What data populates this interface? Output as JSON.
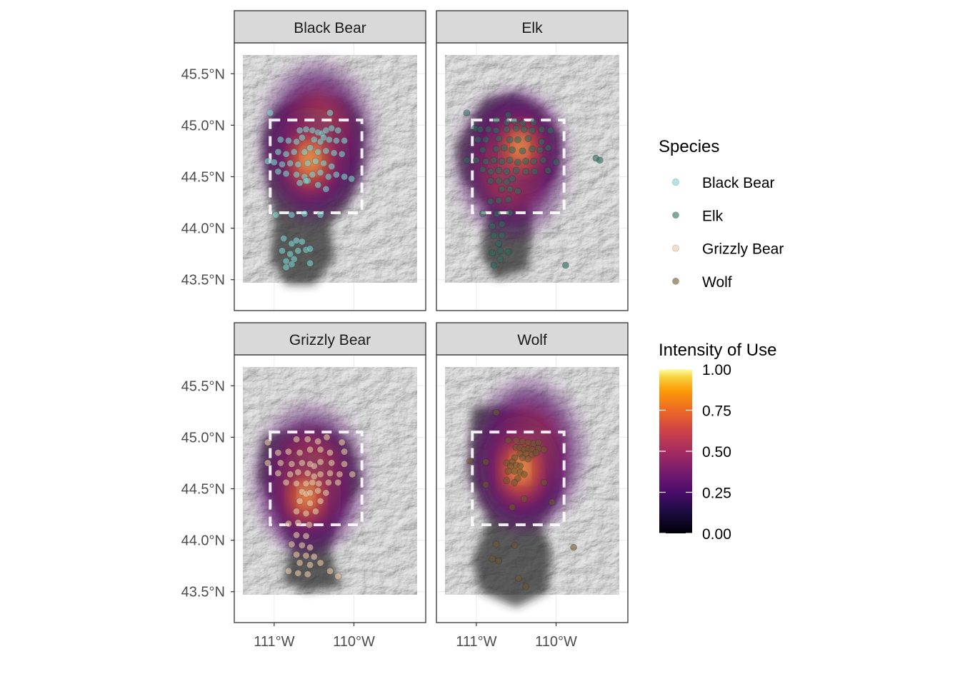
{
  "panels": [
    {
      "title": "Black Bear"
    },
    {
      "title": "Elk"
    },
    {
      "title": "Grizzly Bear"
    },
    {
      "title": "Wolf"
    }
  ],
  "axes": {
    "y_ticks": [
      "45.5°N",
      "45.0°N",
      "44.5°N",
      "44.0°N",
      "43.5°N"
    ],
    "x_ticks": [
      "111°W",
      "110°W"
    ]
  },
  "legend_species": {
    "title": "Species",
    "items": [
      {
        "label": "Black Bear",
        "color": "#7fd3cf"
      },
      {
        "label": "Elk",
        "color": "#2f6b5e"
      },
      {
        "label": "Grizzly Bear",
        "color": "#e8c9a8"
      },
      {
        "label": "Wolf",
        "color": "#6b5630"
      }
    ]
  },
  "legend_intensity": {
    "title": "Intensity of Use",
    "labels": [
      "1.00",
      "0.75",
      "0.50",
      "0.25",
      "0.00"
    ],
    "colors": [
      "#fcffa4",
      "#f98e09",
      "#bc3754",
      "#57106e",
      "#000004"
    ]
  },
  "chart_data": {
    "type": "map",
    "facets": [
      "Black Bear",
      "Elk",
      "Grizzly Bear",
      "Wolf"
    ],
    "x_axis": {
      "ticks": [
        -111,
        -110
      ],
      "labels": [
        "111°W",
        "110°W"
      ],
      "range": [
        -111.5,
        -109.1
      ]
    },
    "y_axis": {
      "ticks": [
        45.5,
        45.0,
        44.5,
        44.0,
        43.5
      ],
      "labels": [
        "45.5°N",
        "45.0°N",
        "44.5°N",
        "44.0°N",
        "43.5°N"
      ],
      "range": [
        43.2,
        45.8
      ]
    },
    "basemap": "hillshade relief",
    "boundary": {
      "style": "white dashed",
      "lon": [
        -111.05,
        -109.9
      ],
      "lat": [
        44.15,
        45.05
      ]
    },
    "fill_scale": {
      "name": "Intensity of Use",
      "palette": "inferno",
      "range": [
        0,
        1
      ]
    },
    "series": [
      {
        "name": "Black Bear",
        "points": [
          [
            -111.05,
            45.12
          ],
          [
            -110.3,
            45.12
          ],
          [
            -110.68,
            44.95
          ],
          [
            -110.6,
            44.96
          ],
          [
            -110.52,
            44.95
          ],
          [
            -110.45,
            44.93
          ],
          [
            -110.4,
            44.92
          ],
          [
            -110.35,
            44.95
          ],
          [
            -110.28,
            44.97
          ],
          [
            -110.2,
            44.95
          ],
          [
            -110.92,
            44.86
          ],
          [
            -110.82,
            44.85
          ],
          [
            -110.72,
            44.84
          ],
          [
            -110.65,
            44.88
          ],
          [
            -110.5,
            44.86
          ],
          [
            -110.42,
            44.84
          ],
          [
            -110.38,
            44.88
          ],
          [
            -110.31,
            44.86
          ],
          [
            -110.22,
            44.85
          ],
          [
            -110.12,
            44.85
          ],
          [
            -110.95,
            44.74
          ],
          [
            -110.85,
            44.72
          ],
          [
            -110.75,
            44.74
          ],
          [
            -110.62,
            44.74
          ],
          [
            -110.55,
            44.78
          ],
          [
            -110.45,
            44.74
          ],
          [
            -110.35,
            44.75
          ],
          [
            -110.25,
            44.73
          ],
          [
            -110.15,
            44.72
          ],
          [
            -111.08,
            44.65
          ],
          [
            -111.0,
            44.64
          ],
          [
            -110.9,
            44.62
          ],
          [
            -110.8,
            44.63
          ],
          [
            -110.7,
            44.62
          ],
          [
            -110.58,
            44.63
          ],
          [
            -110.48,
            44.65
          ],
          [
            -110.38,
            44.63
          ],
          [
            -110.28,
            44.6
          ],
          [
            -110.95,
            44.55
          ],
          [
            -110.85,
            44.53
          ],
          [
            -110.72,
            44.52
          ],
          [
            -110.62,
            44.5
          ],
          [
            -110.52,
            44.52
          ],
          [
            -110.42,
            44.54
          ],
          [
            -110.32,
            44.5
          ],
          [
            -110.22,
            44.52
          ],
          [
            -110.12,
            44.5
          ],
          [
            -110.68,
            44.44
          ],
          [
            -110.58,
            44.46
          ],
          [
            -110.45,
            44.42
          ],
          [
            -110.35,
            44.38
          ],
          [
            -110.03,
            44.48
          ],
          [
            -110.6,
            44.46
          ],
          [
            -110.98,
            44.13
          ],
          [
            -110.78,
            44.13
          ],
          [
            -110.62,
            44.14
          ],
          [
            -110.42,
            44.13
          ],
          [
            -110.88,
            43.9
          ],
          [
            -110.78,
            43.85
          ],
          [
            -110.72,
            43.88
          ],
          [
            -110.65,
            43.87
          ],
          [
            -110.9,
            43.78
          ],
          [
            -110.8,
            43.75
          ],
          [
            -110.7,
            43.78
          ],
          [
            -110.6,
            43.79
          ],
          [
            -110.55,
            43.8
          ],
          [
            -110.75,
            43.7
          ],
          [
            -110.85,
            43.68
          ],
          [
            -110.78,
            43.65
          ],
          [
            -110.85,
            43.62
          ],
          [
            -110.55,
            43.66
          ]
        ]
      },
      {
        "name": "Elk",
        "points": [
          [
            -111.12,
            45.12
          ],
          [
            -110.6,
            45.1
          ],
          [
            -110.75,
            45.05
          ],
          [
            -110.62,
            45.03
          ],
          [
            -110.52,
            45.04
          ],
          [
            -110.42,
            45.02
          ],
          [
            -110.28,
            45.03
          ],
          [
            -111.02,
            44.97
          ],
          [
            -110.95,
            44.96
          ],
          [
            -110.85,
            44.96
          ],
          [
            -110.75,
            44.95
          ],
          [
            -110.62,
            44.96
          ],
          [
            -110.5,
            44.97
          ],
          [
            -110.4,
            44.96
          ],
          [
            -110.3,
            44.95
          ],
          [
            -110.18,
            44.96
          ],
          [
            -110.07,
            44.95
          ],
          [
            -110.98,
            44.86
          ],
          [
            -110.88,
            44.86
          ],
          [
            -110.72,
            44.87
          ],
          [
            -110.58,
            44.86
          ],
          [
            -110.48,
            44.86
          ],
          [
            -110.35,
            44.87
          ],
          [
            -110.18,
            44.84
          ],
          [
            -110.92,
            44.76
          ],
          [
            -110.75,
            44.77
          ],
          [
            -110.65,
            44.78
          ],
          [
            -110.55,
            44.76
          ],
          [
            -110.42,
            44.75
          ],
          [
            -110.3,
            44.77
          ],
          [
            -110.2,
            44.76
          ],
          [
            -110.1,
            44.78
          ],
          [
            -111.12,
            44.66
          ],
          [
            -111.0,
            44.66
          ],
          [
            -110.88,
            44.65
          ],
          [
            -110.78,
            44.66
          ],
          [
            -110.68,
            44.65
          ],
          [
            -110.58,
            44.66
          ],
          [
            -110.48,
            44.64
          ],
          [
            -110.38,
            44.65
          ],
          [
            -110.28,
            44.65
          ],
          [
            -110.16,
            44.66
          ],
          [
            -110.0,
            44.64
          ],
          [
            -110.92,
            44.57
          ],
          [
            -110.82,
            44.55
          ],
          [
            -110.72,
            44.56
          ],
          [
            -110.62,
            44.55
          ],
          [
            -110.5,
            44.56
          ],
          [
            -110.38,
            44.55
          ],
          [
            -110.27,
            44.55
          ],
          [
            -110.1,
            44.56
          ],
          [
            -110.82,
            44.46
          ],
          [
            -110.72,
            44.46
          ],
          [
            -110.62,
            44.45
          ],
          [
            -110.55,
            44.48
          ],
          [
            -110.68,
            44.38
          ],
          [
            -110.58,
            44.38
          ],
          [
            -110.48,
            44.36
          ],
          [
            -110.82,
            44.26
          ],
          [
            -110.72,
            44.27
          ],
          [
            -110.6,
            44.28
          ],
          [
            -110.92,
            44.14
          ],
          [
            -110.74,
            44.14
          ],
          [
            -110.58,
            44.15
          ],
          [
            -110.8,
            44.02
          ],
          [
            -110.68,
            44.04
          ],
          [
            -110.78,
            43.93
          ],
          [
            -110.68,
            43.93
          ],
          [
            -110.72,
            43.85
          ],
          [
            -110.8,
            43.76
          ],
          [
            -110.7,
            43.78
          ],
          [
            -110.6,
            43.77
          ],
          [
            -110.7,
            43.7
          ],
          [
            -110.78,
            43.64
          ],
          [
            -109.88,
            43.64
          ],
          [
            -109.5,
            44.68
          ],
          [
            -109.45,
            44.66
          ]
        ]
      },
      {
        "name": "Grizzly Bear",
        "points": [
          [
            -111.08,
            44.95
          ],
          [
            -110.72,
            44.98
          ],
          [
            -110.58,
            44.98
          ],
          [
            -110.45,
            44.96
          ],
          [
            -110.34,
            45.0
          ],
          [
            -110.15,
            44.95
          ],
          [
            -110.95,
            44.85
          ],
          [
            -110.82,
            44.86
          ],
          [
            -110.68,
            44.85
          ],
          [
            -110.55,
            44.88
          ],
          [
            -110.42,
            44.88
          ],
          [
            -110.3,
            44.85
          ],
          [
            -110.12,
            44.86
          ],
          [
            -111.08,
            44.75
          ],
          [
            -110.92,
            44.75
          ],
          [
            -110.78,
            44.74
          ],
          [
            -110.65,
            44.75
          ],
          [
            -110.55,
            44.74
          ],
          [
            -110.5,
            44.72
          ],
          [
            -110.42,
            44.76
          ],
          [
            -110.28,
            44.75
          ],
          [
            -110.12,
            44.74
          ],
          [
            -110.95,
            44.65
          ],
          [
            -110.8,
            44.64
          ],
          [
            -110.7,
            44.66
          ],
          [
            -110.58,
            44.65
          ],
          [
            -110.5,
            44.62
          ],
          [
            -110.42,
            44.64
          ],
          [
            -110.3,
            44.65
          ],
          [
            -110.18,
            44.64
          ],
          [
            -110.02,
            44.64
          ],
          [
            -110.85,
            44.56
          ],
          [
            -110.72,
            44.55
          ],
          [
            -110.6,
            44.55
          ],
          [
            -110.52,
            44.56
          ],
          [
            -110.44,
            44.55
          ],
          [
            -110.32,
            44.56
          ],
          [
            -110.2,
            44.56
          ],
          [
            -110.65,
            44.47
          ],
          [
            -110.6,
            44.45
          ],
          [
            -110.55,
            44.46
          ],
          [
            -110.45,
            44.48
          ],
          [
            -110.35,
            44.46
          ],
          [
            -110.68,
            44.38
          ],
          [
            -110.55,
            44.36
          ],
          [
            -110.42,
            44.38
          ],
          [
            -110.72,
            44.28
          ],
          [
            -110.6,
            44.26
          ],
          [
            -110.48,
            44.28
          ],
          [
            -110.82,
            44.16
          ],
          [
            -110.7,
            44.17
          ],
          [
            -110.56,
            44.15
          ],
          [
            -110.72,
            44.05
          ],
          [
            -110.6,
            44.04
          ],
          [
            -110.78,
            43.96
          ],
          [
            -110.65,
            43.95
          ],
          [
            -110.55,
            43.93
          ],
          [
            -110.72,
            43.86
          ],
          [
            -110.6,
            43.85
          ],
          [
            -110.5,
            43.84
          ],
          [
            -110.68,
            43.78
          ],
          [
            -110.55,
            43.76
          ],
          [
            -110.42,
            43.78
          ],
          [
            -110.82,
            43.7
          ],
          [
            -110.7,
            43.68
          ],
          [
            -110.58,
            43.67
          ],
          [
            -110.3,
            43.7
          ],
          [
            -110.2,
            43.65
          ]
        ]
      },
      {
        "name": "Wolf",
        "points": [
          [
            -110.75,
            45.24
          ],
          [
            -110.6,
            44.97
          ],
          [
            -110.5,
            44.97
          ],
          [
            -110.42,
            44.96
          ],
          [
            -110.35,
            44.95
          ],
          [
            -110.28,
            44.94
          ],
          [
            -110.22,
            44.95
          ],
          [
            -110.5,
            44.9
          ],
          [
            -110.45,
            44.9
          ],
          [
            -110.4,
            44.88
          ],
          [
            -110.35,
            44.89
          ],
          [
            -110.3,
            44.88
          ],
          [
            -110.22,
            44.89
          ],
          [
            -110.15,
            44.88
          ],
          [
            -110.45,
            44.84
          ],
          [
            -110.38,
            44.84
          ],
          [
            -110.3,
            44.83
          ],
          [
            -110.25,
            44.85
          ],
          [
            -110.52,
            44.8
          ],
          [
            -110.42,
            44.8
          ],
          [
            -110.35,
            44.79
          ],
          [
            -110.55,
            44.76
          ],
          [
            -110.5,
            44.73
          ],
          [
            -110.45,
            44.72
          ],
          [
            -111.08,
            44.77
          ],
          [
            -110.88,
            44.76
          ],
          [
            -110.62,
            44.75
          ],
          [
            -110.57,
            44.72
          ],
          [
            -110.6,
            44.67
          ],
          [
            -110.52,
            44.67
          ],
          [
            -110.45,
            44.66
          ],
          [
            -110.4,
            44.64
          ],
          [
            -110.48,
            44.6
          ],
          [
            -110.62,
            44.58
          ],
          [
            -110.52,
            44.56
          ],
          [
            -110.15,
            44.56
          ],
          [
            -110.4,
            44.4
          ],
          [
            -110.05,
            44.37
          ],
          [
            -110.55,
            44.32
          ],
          [
            -110.75,
            43.96
          ],
          [
            -110.8,
            43.82
          ],
          [
            -110.72,
            43.8
          ],
          [
            -110.52,
            43.95
          ],
          [
            -110.47,
            43.63
          ],
          [
            -110.38,
            43.55
          ],
          [
            -109.78,
            43.93
          ],
          [
            -110.88,
            44.54
          ]
        ]
      }
    ]
  }
}
